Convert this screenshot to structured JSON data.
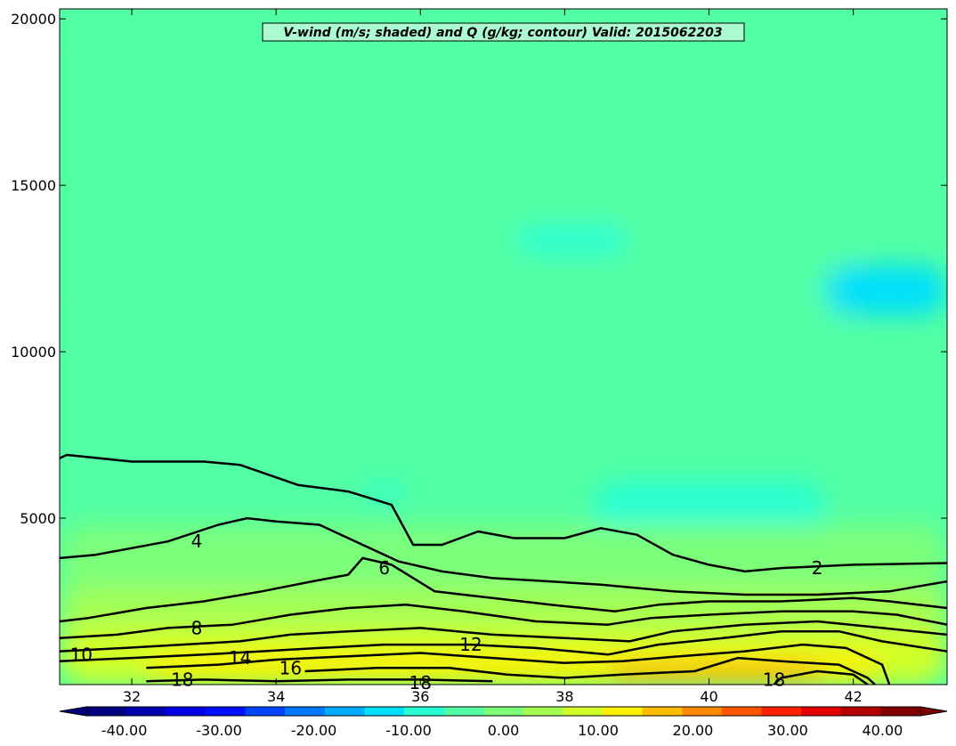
{
  "chart_data": {
    "type": "filled-contour",
    "title": "V-wind (m/s; shaded) and Q (g/kg; contour) Valid: 2015062203",
    "shaded_variable": "V-wind (m/s)",
    "contour_variable": "Q (g/kg)",
    "xlim": [
      31.0,
      43.3
    ],
    "ylim": [
      0,
      20300
    ],
    "x_ticks": [
      32,
      34,
      36,
      38,
      40,
      42
    ],
    "y_ticks": [
      5000,
      10000,
      15000,
      20000
    ],
    "colorbar": {
      "range": [
        -44,
        44
      ],
      "extend": "both",
      "tick_values": [
        -40,
        -30,
        -20,
        -10,
        0,
        10,
        20,
        30,
        40
      ],
      "tick_labels": [
        "-40.00",
        "-30.00",
        "-20.00",
        "-10.00",
        "0.00",
        "10.00",
        "20.00",
        "30.00",
        "40.00"
      ],
      "colors": [
        "#00007f",
        "#0000b2",
        "#0000e4",
        "#0010ff",
        "#0044ff",
        "#0078ff",
        "#00acff",
        "#00e0fb",
        "#26ffd1",
        "#52ffa4",
        "#7cff7a",
        "#a4ff52",
        "#d1ff26",
        "#fbf100",
        "#ffbd00",
        "#ff8900",
        "#ff5500",
        "#ff2000",
        "#e40000",
        "#b20000",
        "#7f0000"
      ]
    },
    "background_value": -3,
    "shaded_regions": [
      {
        "value": -6,
        "x": [
          31.0,
          42.0
        ],
        "y": [
          10500,
          20000
        ]
      },
      {
        "value": -10,
        "x": [
          37.3,
          38.9
        ],
        "y": [
          12900,
          13800
        ]
      },
      {
        "value": -12,
        "x": [
          41.6,
          43.3
        ],
        "y": [
          11100,
          12600
        ]
      },
      {
        "value": -10,
        "x": [
          38.4,
          41.6
        ],
        "y": [
          4300,
          6100
        ]
      },
      {
        "value": -10,
        "x": [
          35.2,
          35.8
        ],
        "y": [
          5500,
          6000
        ]
      },
      {
        "value": 2,
        "x": [
          31.0,
          43.3
        ],
        "y": [
          0,
          4800
        ]
      },
      {
        "value": 6,
        "x": [
          31.0,
          43.3
        ],
        "y": [
          0,
          2900
        ]
      },
      {
        "value": 10,
        "x": [
          31.0,
          43.3
        ],
        "y": [
          0,
          1700
        ]
      },
      {
        "value": 14,
        "x": [
          32.2,
          42.4
        ],
        "y": [
          0,
          1000
        ]
      },
      {
        "value": 16,
        "x": [
          38.6,
          41.6
        ],
        "y": [
          0,
          700
        ]
      }
    ],
    "contours": [
      {
        "level": 2,
        "points": [
          [
            31.0,
            6800
          ],
          [
            31.1,
            6900
          ],
          [
            32.0,
            6700
          ],
          [
            33.0,
            6700
          ],
          [
            33.5,
            6600
          ],
          [
            34.3,
            6000
          ],
          [
            35.0,
            5800
          ],
          [
            35.6,
            5400
          ],
          [
            35.9,
            4200
          ],
          [
            36.3,
            4200
          ],
          [
            36.8,
            4600
          ],
          [
            37.3,
            4400
          ],
          [
            38.0,
            4400
          ],
          [
            38.5,
            4700
          ],
          [
            39.0,
            4500
          ],
          [
            39.5,
            3900
          ],
          [
            40.0,
            3600
          ],
          [
            40.5,
            3400
          ],
          [
            41.0,
            3500
          ],
          [
            41.5,
            3550
          ],
          [
            42.0,
            3600
          ],
          [
            43.3,
            3650
          ]
        ]
      },
      {
        "level": 4,
        "points": [
          [
            31.0,
            3800
          ],
          [
            31.5,
            3900
          ],
          [
            32.5,
            4300
          ],
          [
            33.2,
            4800
          ],
          [
            33.6,
            5000
          ],
          [
            34.0,
            4900
          ],
          [
            34.6,
            4800
          ],
          [
            35.1,
            4300
          ],
          [
            35.7,
            3700
          ],
          [
            36.3,
            3400
          ],
          [
            37.0,
            3200
          ],
          [
            37.8,
            3100
          ],
          [
            38.5,
            3000
          ],
          [
            39.5,
            2800
          ],
          [
            40.5,
            2700
          ],
          [
            41.5,
            2700
          ],
          [
            42.5,
            2800
          ],
          [
            43.3,
            3100
          ]
        ]
      },
      {
        "level": 6,
        "points": [
          [
            31.0,
            1900
          ],
          [
            31.4,
            2000
          ],
          [
            32.2,
            2300
          ],
          [
            33.0,
            2500
          ],
          [
            33.8,
            2800
          ],
          [
            34.5,
            3100
          ],
          [
            35.0,
            3300
          ],
          [
            35.2,
            3800
          ],
          [
            35.6,
            3600
          ],
          [
            36.2,
            2800
          ],
          [
            37.0,
            2600
          ],
          [
            37.8,
            2400
          ],
          [
            38.7,
            2200
          ],
          [
            39.3,
            2400
          ],
          [
            40.0,
            2500
          ],
          [
            41.0,
            2500
          ],
          [
            42.0,
            2600
          ],
          [
            42.5,
            2500
          ],
          [
            43.3,
            2300
          ]
        ]
      },
      {
        "level": 8,
        "points": [
          [
            31.0,
            1400
          ],
          [
            31.8,
            1500
          ],
          [
            32.5,
            1700
          ],
          [
            33.4,
            1800
          ],
          [
            34.2,
            2100
          ],
          [
            35.0,
            2300
          ],
          [
            35.8,
            2400
          ],
          [
            36.6,
            2200
          ],
          [
            37.6,
            1900
          ],
          [
            38.6,
            1800
          ],
          [
            39.2,
            2000
          ],
          [
            40.0,
            2100
          ],
          [
            41.0,
            2200
          ],
          [
            42.0,
            2200
          ],
          [
            42.6,
            2100
          ],
          [
            43.3,
            1800
          ]
        ]
      },
      {
        "level": 10,
        "points": [
          [
            31.0,
            1000
          ],
          [
            31.9,
            1100
          ],
          [
            32.7,
            1200
          ],
          [
            33.5,
            1300
          ],
          [
            34.2,
            1500
          ],
          [
            35.0,
            1600
          ],
          [
            36.0,
            1700
          ],
          [
            37.0,
            1500
          ],
          [
            38.0,
            1400
          ],
          [
            38.9,
            1300
          ],
          [
            39.5,
            1600
          ],
          [
            40.5,
            1800
          ],
          [
            41.5,
            1900
          ],
          [
            42.4,
            1700
          ],
          [
            43.3,
            1500
          ]
        ]
      },
      {
        "level": 12,
        "points": [
          [
            31.0,
            700
          ],
          [
            32.0,
            800
          ],
          [
            33.0,
            900
          ],
          [
            33.8,
            1000
          ],
          [
            34.6,
            1100
          ],
          [
            35.5,
            1200
          ],
          [
            36.7,
            1200
          ],
          [
            37.6,
            1100
          ],
          [
            38.6,
            900
          ],
          [
            39.3,
            1200
          ],
          [
            40.2,
            1400
          ],
          [
            41.0,
            1600
          ],
          [
            41.8,
            1600
          ],
          [
            42.4,
            1300
          ],
          [
            43.3,
            1000
          ]
        ]
      },
      {
        "level": 14,
        "points": [
          [
            32.2,
            500
          ],
          [
            33.2,
            600
          ],
          [
            34.0,
            750
          ],
          [
            35.0,
            850
          ],
          [
            36.0,
            950
          ],
          [
            37.0,
            800
          ],
          [
            38.0,
            650
          ],
          [
            38.8,
            700
          ],
          [
            39.6,
            850
          ],
          [
            40.5,
            1000
          ],
          [
            41.3,
            1200
          ],
          [
            41.9,
            1100
          ],
          [
            42.4,
            600
          ],
          [
            42.5,
            0
          ]
        ]
      },
      {
        "level": 16,
        "points": [
          [
            34.4,
            400
          ],
          [
            35.4,
            500
          ],
          [
            36.4,
            500
          ],
          [
            37.2,
            300
          ],
          [
            38.0,
            200
          ],
          [
            38.8,
            300
          ],
          [
            39.8,
            400
          ],
          [
            40.4,
            800
          ],
          [
            41.0,
            700
          ],
          [
            41.8,
            600
          ],
          [
            42.2,
            200
          ],
          [
            42.3,
            0
          ]
        ]
      },
      {
        "level": 18,
        "points": [
          [
            32.2,
            100
          ],
          [
            33.0,
            150
          ],
          [
            34.0,
            100
          ],
          [
            35.0,
            150
          ],
          [
            36.0,
            150
          ],
          [
            37.0,
            100
          ]
        ]
      },
      {
        "level": 18,
        "points": [
          [
            40.9,
            0
          ],
          [
            41.0,
            200
          ],
          [
            41.5,
            400
          ],
          [
            42.0,
            300
          ],
          [
            42.2,
            0
          ]
        ]
      }
    ],
    "contour_labels": [
      {
        "text": "2",
        "x": 41.5,
        "y": 3500
      },
      {
        "text": "4",
        "x": 32.9,
        "y": 4300
      },
      {
        "text": "6",
        "x": 35.5,
        "y": 3500
      },
      {
        "text": "8",
        "x": 32.9,
        "y": 1700
      },
      {
        "text": "10",
        "x": 31.3,
        "y": 900
      },
      {
        "text": "12",
        "x": 36.7,
        "y": 1200
      },
      {
        "text": "14",
        "x": 33.5,
        "y": 800
      },
      {
        "text": "16",
        "x": 34.2,
        "y": 500
      },
      {
        "text": "18",
        "x": 32.7,
        "y": 150
      },
      {
        "text": "18",
        "x": 36.0,
        "y": 50
      },
      {
        "text": "18",
        "x": 40.9,
        "y": 150
      }
    ]
  }
}
